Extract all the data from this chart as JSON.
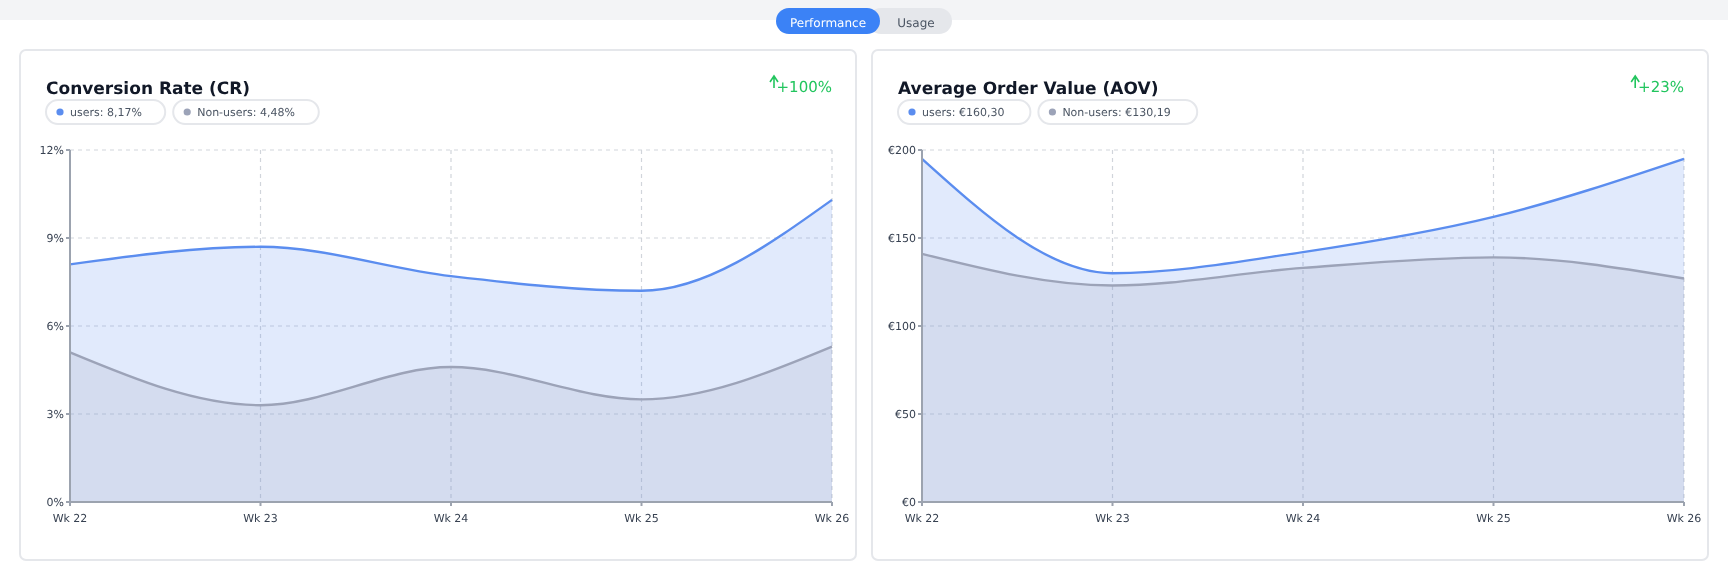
{
  "chart_data": [
    {
      "type": "other",
      "annotations": [
        "Performance",
        "Usage"
      ]
    },
    {
      "type": "area",
      "title": "Conversion Rate (CR)",
      "annotations": [
        "+100%"
      ],
      "categories": [
        "Wk 22",
        "Wk 23",
        "Wk 24",
        "Wk 25",
        "Wk 26"
      ],
      "series": [
        {
          "name": "users: 8,17%",
          "color": "#5b8def",
          "values": [
            8.1,
            8.7,
            7.7,
            7.2,
            10.3
          ]
        },
        {
          "name": "Non-users: 4,48%",
          "color": "#9ca3b8",
          "values": [
            5.1,
            3.3,
            4.6,
            3.5,
            5.3
          ]
        }
      ],
      "ylim": [
        0,
        12
      ],
      "yticks": [
        {
          "value": 0,
          "label": "0%"
        },
        {
          "value": 3,
          "label": "3%"
        },
        {
          "value": 6,
          "label": "6%"
        },
        {
          "value": 9,
          "label": "9%"
        },
        {
          "value": 12,
          "label": "12%"
        }
      ],
      "grid": true,
      "legend": "top left"
    },
    {
      "type": "area",
      "title": "Average Order Value (AOV)",
      "annotations": [
        "+23%"
      ],
      "categories": [
        "Wk 22",
        "Wk 23",
        "Wk 24",
        "Wk 25",
        "Wk 26"
      ],
      "series": [
        {
          "name": "users: €160,30",
          "color": "#5b8def",
          "values": [
            195,
            130,
            142,
            162,
            195
          ]
        },
        {
          "name": "Non-users: €130,19",
          "color": "#9ca3b8",
          "values": [
            141,
            123,
            133,
            139,
            127
          ]
        }
      ],
      "ylim": [
        0,
        200
      ],
      "yticks": [
        {
          "value": 0,
          "label": "€0"
        },
        {
          "value": 50,
          "label": "€50"
        },
        {
          "value": 100,
          "label": "€100"
        },
        {
          "value": 150,
          "label": "€150"
        },
        {
          "value": 200,
          "label": "€200"
        }
      ],
      "grid": true,
      "legend": "top left"
    }
  ]
}
